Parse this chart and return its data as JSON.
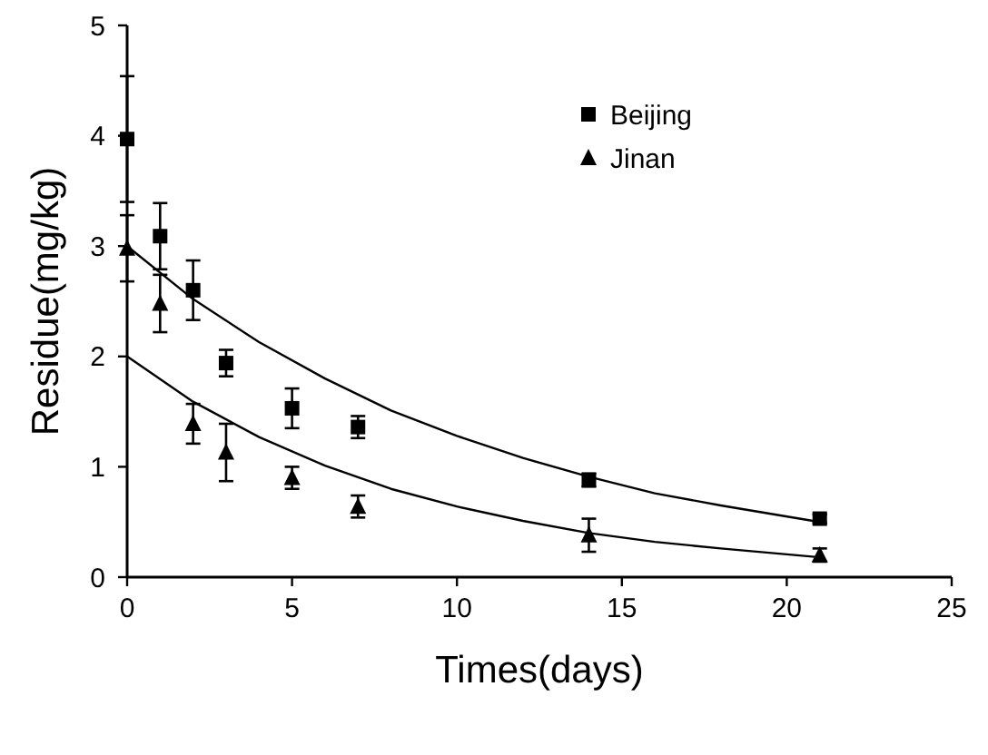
{
  "chart_data": {
    "type": "scatter",
    "xlabel": "Times(days)",
    "ylabel": "Residue(mg/kg)",
    "xlim": [
      0,
      25
    ],
    "ylim": [
      0,
      5
    ],
    "xticks": [
      0,
      5,
      10,
      15,
      20,
      25
    ],
    "yticks": [
      0,
      1,
      2,
      3,
      4,
      5
    ],
    "grid": false,
    "legend": "top right",
    "series": [
      {
        "name": "Beijing",
        "marker": "square",
        "color": "#000000",
        "x": [
          0,
          1,
          2,
          3,
          5,
          7,
          14,
          21
        ],
        "values": [
          3.97,
          3.09,
          2.6,
          1.94,
          1.53,
          1.36,
          0.88,
          0.53
        ],
        "errors": [
          0.57,
          0.3,
          0.27,
          0.12,
          0.18,
          0.1,
          0.06,
          0.04
        ]
      },
      {
        "name": "Jinan",
        "marker": "triangle",
        "color": "#000000",
        "x": [
          0,
          1,
          2,
          3,
          5,
          7,
          14,
          21
        ],
        "values": [
          2.98,
          2.48,
          1.39,
          1.13,
          0.9,
          0.64,
          0.38,
          0.2
        ],
        "errors": [
          0.3,
          0.26,
          0.18,
          0.26,
          0.1,
          0.1,
          0.15,
          0.06
        ]
      },
      {
        "type": "line",
        "marker": "none",
        "color": "#000000",
        "x": [
          0,
          2,
          4,
          6,
          8,
          10,
          12,
          14,
          16,
          18,
          21
        ],
        "values": [
          3.0,
          2.52,
          2.13,
          1.8,
          1.51,
          1.28,
          1.08,
          0.91,
          0.76,
          0.65,
          0.5
        ]
      },
      {
        "type": "line",
        "marker": "none",
        "color": "#000000",
        "x": [
          0,
          2,
          4,
          6,
          8,
          10,
          12,
          14,
          16,
          18,
          21
        ],
        "values": [
          2.0,
          1.59,
          1.27,
          1.01,
          0.8,
          0.64,
          0.51,
          0.4,
          0.32,
          0.26,
          0.18
        ]
      }
    ]
  }
}
